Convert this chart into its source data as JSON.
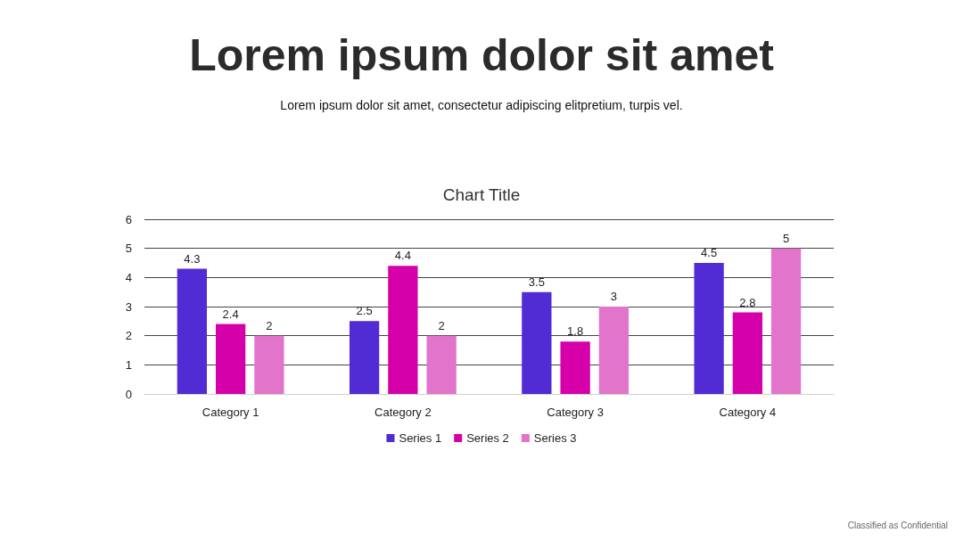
{
  "chart_data": {
    "type": "bar",
    "title": "Lorem ipsum dolor sit amet",
    "subtitle": "Lorem ipsum dolor sit amet, consectetur adipiscing elitpretium, turpis vel.",
    "annotations": [
      "Chart Title",
      "Classified as Confidential"
    ],
    "categories": [
      "Category 1",
      "Category 2",
      "Category 3",
      "Category 4"
    ],
    "series": [
      {
        "name": "Series 1",
        "color": "#512bd4",
        "values": [
          4.3,
          2.5,
          3.5,
          4.5
        ]
      },
      {
        "name": "Series 2",
        "color": "#d600aa",
        "values": [
          2.4,
          4.4,
          1.8,
          2.8
        ]
      },
      {
        "name": "Series 3",
        "color": "#e374cc",
        "values": [
          2,
          2,
          3,
          5
        ]
      }
    ],
    "ylim": [
      0,
      6
    ],
    "yticks": [
      0,
      1,
      2,
      3,
      4,
      5,
      6
    ],
    "grid": "y",
    "legend": "bottom",
    "data_labels": true
  }
}
